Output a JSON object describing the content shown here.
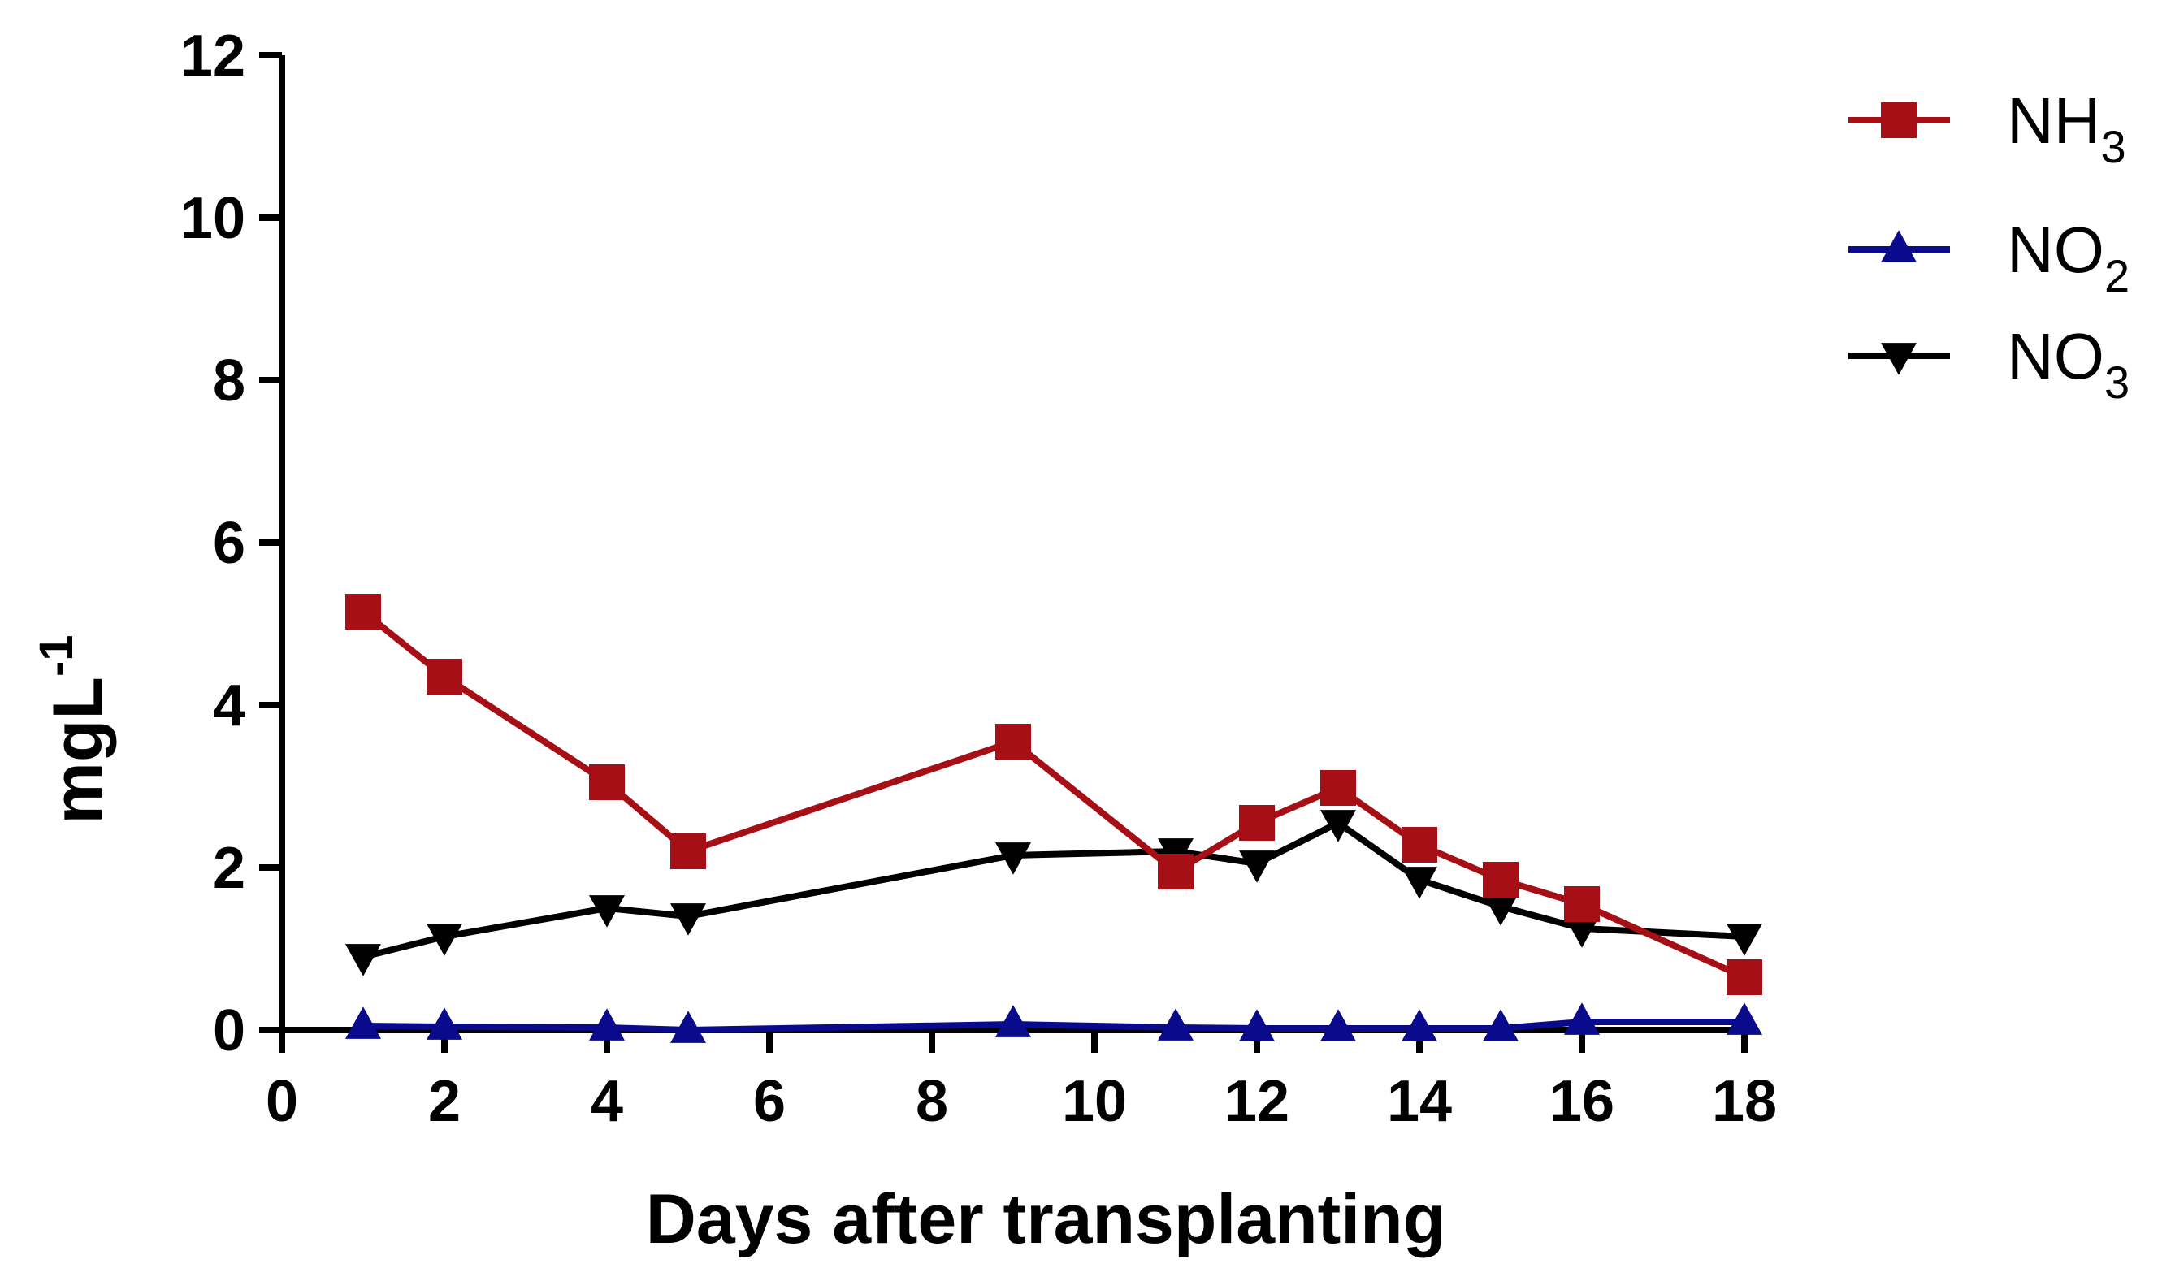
{
  "chart_data": {
    "type": "line",
    "title": "",
    "xlabel": "Days after transplanting",
    "ylabel": {
      "base": "mgL",
      "sup": "-1"
    },
    "xlim": [
      0,
      18
    ],
    "ylim": [
      0,
      12
    ],
    "xticks": [
      0,
      2,
      4,
      6,
      8,
      10,
      12,
      14,
      16,
      18
    ],
    "yticks": [
      0,
      2,
      4,
      6,
      8,
      10,
      12
    ],
    "grid": false,
    "legend_position": "top-right",
    "x": [
      1,
      2,
      4,
      5,
      9,
      11,
      12,
      13,
      14,
      15,
      16,
      18
    ],
    "series": [
      {
        "name": "NH3",
        "label_base": "NH",
        "label_sub": "3",
        "color": "#a50f15",
        "marker": "square",
        "values": [
          5.15,
          4.35,
          3.05,
          2.2,
          3.55,
          1.95,
          2.55,
          2.98,
          2.28,
          1.85,
          1.55,
          0.65
        ]
      },
      {
        "name": "NO2",
        "label_base": "NO",
        "label_sub": "2",
        "color": "#0a0a8c",
        "marker": "triangle-up",
        "values": [
          0.05,
          0.04,
          0.03,
          0.0,
          0.07,
          0.03,
          0.02,
          0.02,
          0.02,
          0.02,
          0.1,
          0.1
        ]
      },
      {
        "name": "NO3",
        "label_base": "NO",
        "label_sub": "3",
        "color": "#000000",
        "marker": "triangle-down",
        "values": [
          0.9,
          1.15,
          1.5,
          1.4,
          2.15,
          2.2,
          2.05,
          2.55,
          1.85,
          1.52,
          1.25,
          1.15
        ]
      }
    ]
  }
}
